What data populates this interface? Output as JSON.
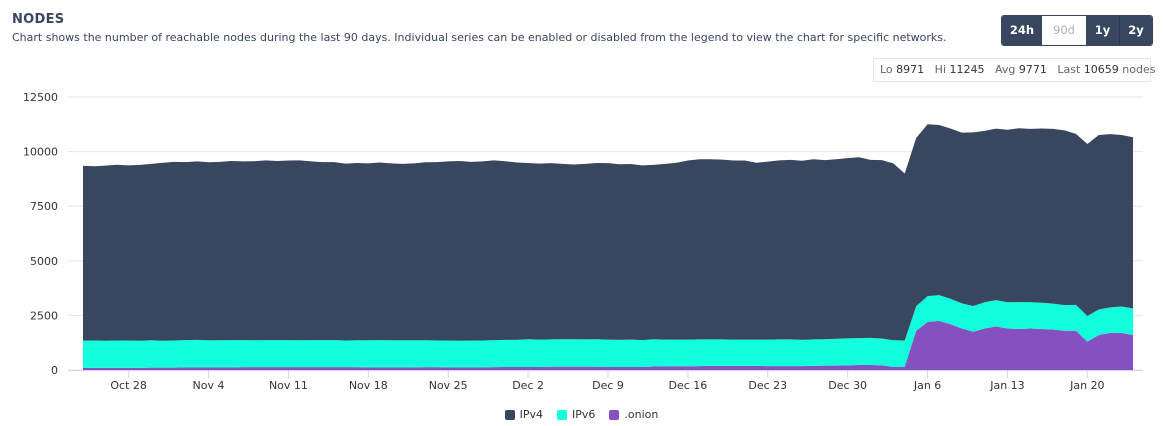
{
  "header": {
    "title": "NODES",
    "subtitle": "Chart shows the number of reachable nodes during the last 90 days. Individual series can be enabled or disabled from the legend to view the chart for specific networks."
  },
  "range_buttons": [
    {
      "label": "24h",
      "state": "active"
    },
    {
      "label": "90d",
      "state": "inactive"
    },
    {
      "label": "1y",
      "state": "active"
    },
    {
      "label": "2y",
      "state": "active"
    }
  ],
  "stats": {
    "lo_label": "Lo",
    "lo_value": "8971",
    "hi_label": "Hi",
    "hi_value": "11245",
    "avg_label": "Avg",
    "avg_value": "9771",
    "last_label": "Last",
    "last_value": "10659",
    "last_unit": "nodes"
  },
  "colors": {
    "ipv4": "#39465f",
    "ipv6": "#11ffdc",
    "onion": "#8650c0",
    "accent": "#39465f"
  },
  "chart_data": {
    "type": "area",
    "stacked": true,
    "title": "",
    "xlabel": "",
    "ylabel": "",
    "ylim": [
      0,
      12500
    ],
    "yticks": [
      0,
      2500,
      5000,
      7500,
      10000,
      12500
    ],
    "xtick_labels": [
      "Oct 28",
      "Nov 4",
      "Nov 11",
      "Nov 18",
      "Nov 25",
      "Dec 2",
      "Dec 9",
      "Dec 16",
      "Dec 23",
      "Dec 30",
      "Jan 6",
      "Jan 13",
      "Jan 20"
    ],
    "xtick_day_index": [
      4,
      11,
      18,
      25,
      32,
      39,
      46,
      53,
      60,
      67,
      74,
      81,
      88
    ],
    "x_start": "Oct 24",
    "legend": "bottom-center",
    "grid": true,
    "series": [
      {
        "name": "IPv4",
        "values": [
          8000,
          7980,
          8020,
          8050,
          8020,
          8050,
          8080,
          8150,
          8180,
          8150,
          8170,
          8150,
          8170,
          8200,
          8180,
          8200,
          8230,
          8200,
          8220,
          8240,
          8180,
          8150,
          8150,
          8100,
          8120,
          8100,
          8130,
          8100,
          8080,
          8100,
          8150,
          8170,
          8200,
          8230,
          8180,
          8200,
          8230,
          8180,
          8120,
          8070,
          8060,
          8070,
          8030,
          8000,
          8040,
          8070,
          8080,
          8040,
          8040,
          8000,
          7980,
          8050,
          8100,
          8200,
          8250,
          8250,
          8230,
          8200,
          8200,
          8100,
          8150,
          8200,
          8220,
          8200,
          8250,
          8200,
          8220,
          8250,
          8280,
          8150,
          8170,
          8100,
          7650,
          7700,
          7870,
          7790,
          7800,
          7820,
          7950,
          7850,
          7850,
          7900,
          7960,
          7930,
          7980,
          8000,
          8000,
          7830,
          7880,
          7990,
          7930,
          7850,
          7837
        ]
      },
      {
        "name": "IPv6",
        "values": [
          1250,
          1250,
          1240,
          1250,
          1250,
          1240,
          1250,
          1230,
          1240,
          1250,
          1260,
          1240,
          1240,
          1250,
          1240,
          1230,
          1240,
          1240,
          1240,
          1230,
          1240,
          1240,
          1240,
          1220,
          1230,
          1240,
          1250,
          1240,
          1240,
          1240,
          1230,
          1220,
          1230,
          1220,
          1230,
          1230,
          1240,
          1240,
          1240,
          1270,
          1250,
          1250,
          1260,
          1260,
          1250,
          1260,
          1250,
          1240,
          1250,
          1230,
          1250,
          1220,
          1220,
          1220,
          1220,
          1210,
          1210,
          1200,
          1200,
          1200,
          1210,
          1220,
          1220,
          1200,
          1210,
          1210,
          1230,
          1240,
          1230,
          1240,
          1230,
          1220,
          1200,
          1120,
          1180,
          1180,
          1160,
          1150,
          1180,
          1200,
          1200,
          1200,
          1230,
          1210,
          1200,
          1190,
          1170,
          1180,
          1170,
          1170,
          1170,
          1210,
          1222
        ]
      },
      {
        "name": ".onion",
        "values": [
          100,
          100,
          100,
          100,
          100,
          100,
          110,
          110,
          110,
          120,
          120,
          120,
          120,
          120,
          130,
          130,
          130,
          130,
          130,
          130,
          130,
          130,
          130,
          130,
          130,
          120,
          120,
          120,
          120,
          120,
          130,
          130,
          120,
          120,
          120,
          120,
          130,
          140,
          140,
          140,
          140,
          150,
          150,
          150,
          150,
          150,
          140,
          140,
          140,
          140,
          160,
          170,
          170,
          170,
          180,
          190,
          190,
          190,
          190,
          190,
          180,
          180,
          180,
          180,
          190,
          200,
          200,
          210,
          230,
          230,
          210,
          140,
          150,
          1800,
          2200,
          2250,
          2100,
          1900,
          1750,
          1900,
          2000,
          1900,
          1880,
          1900,
          1880,
          1850,
          1800,
          1800,
          1300,
          1600,
          1700,
          1700,
          1600
        ]
      }
    ]
  }
}
